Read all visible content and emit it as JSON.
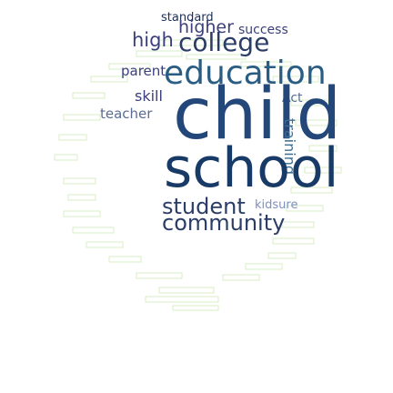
{
  "word_cloud": {
    "words": [
      {
        "text": "standard",
        "color": "#1b2e57"
      },
      {
        "text": "higher",
        "color": "#3b3f7a"
      },
      {
        "text": "success",
        "color": "#3b3f7a"
      },
      {
        "text": "high",
        "color": "#3b3f7a"
      },
      {
        "text": "college",
        "color": "#2b3d66"
      },
      {
        "text": "parent",
        "color": "#3b3f7a"
      },
      {
        "text": "education",
        "color": "#2a5d83"
      },
      {
        "text": "skill",
        "color": "#3b3f7a"
      },
      {
        "text": "Act",
        "color": "#5a6e94"
      },
      {
        "text": "teacher",
        "color": "#5a6e94"
      },
      {
        "text": "child",
        "color": "#24477a"
      },
      {
        "text": "training",
        "color": "#3b6e92"
      },
      {
        "text": "school",
        "color": "#183a66"
      },
      {
        "text": "student",
        "color": "#2b3d66"
      },
      {
        "text": "kidsure",
        "color": "#7f8fbf"
      },
      {
        "text": "community",
        "color": "#2b3d66"
      }
    ],
    "background_color": "#ffffff",
    "faint_text_color": "#d7efc7"
  }
}
